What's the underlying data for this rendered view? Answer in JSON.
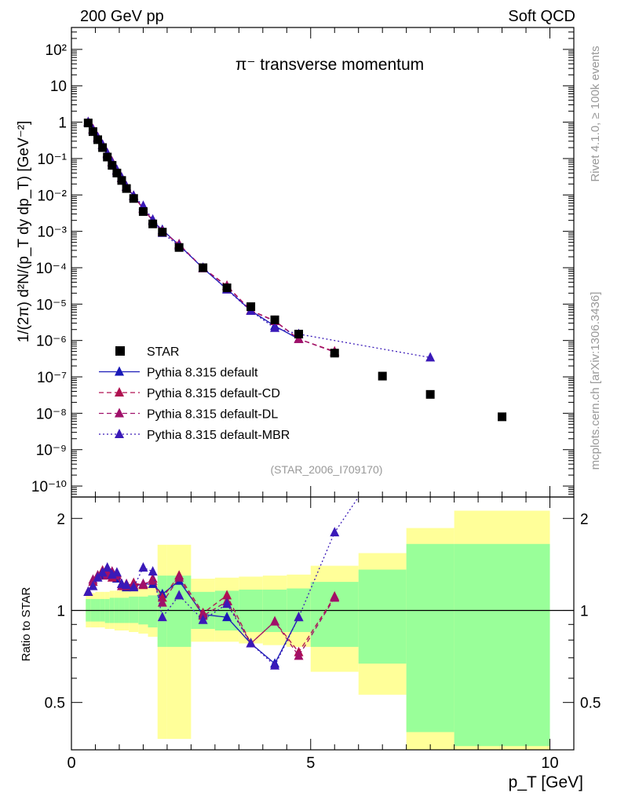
{
  "header": {
    "left": "200 GeV pp",
    "right": "Soft QCD"
  },
  "side_labels": {
    "rivet": "Rivet 4.1.0, ≥ 100k events",
    "mcplots": "mcplots.cern.ch [arXiv:1306.3436]"
  },
  "colors": {
    "star": "#000000",
    "default": "#1a1ab8",
    "cd": "#b01050",
    "dl": "#a0106a",
    "mbr": "#3a1ab8",
    "band_outer": "#ffff99",
    "band_inner": "#99ff99"
  },
  "chart_data": [
    {
      "type": "scatter",
      "title": "π⁻ transverse momentum",
      "watermark": "(STAR_2006_I709170)",
      "ylabel": "1/(2π)  d²N/(p_T dy dp_T) [GeV⁻²]",
      "yscale": "log",
      "xlim": [
        0,
        10.5
      ],
      "ylim": [
        5e-11,
        400
      ],
      "ytick_labels": [
        "10⁻¹⁰",
        "10⁻⁹",
        "10⁻⁸",
        "10⁻⁷",
        "10⁻⁶",
        "10⁻⁵",
        "10⁻⁴",
        "10⁻³",
        "10⁻²",
        "10⁻¹",
        "1",
        "10",
        "10²"
      ],
      "legend": [
        "STAR",
        "Pythia 8.315 default",
        "Pythia 8.315 default-CD",
        "Pythia 8.315 default-DL",
        "Pythia 8.315 default-MBR"
      ],
      "star": {
        "x": [
          0.35,
          0.45,
          0.55,
          0.65,
          0.75,
          0.85,
          0.95,
          1.05,
          1.15,
          1.3,
          1.5,
          1.7,
          1.9,
          2.25,
          2.75,
          3.25,
          3.75,
          4.25,
          4.75,
          5.5,
          6.5,
          7.5,
          9.0
        ],
        "y": [
          0.95,
          0.55,
          0.33,
          0.2,
          0.11,
          0.065,
          0.04,
          0.025,
          0.015,
          0.008,
          0.0035,
          0.0016,
          0.00095,
          0.00036,
          0.0001,
          2.8e-05,
          8.5e-06,
          3.7e-06,
          1.5e-06,
          4.5e-07,
          1.05e-07,
          3.3e-08,
          8e-09
        ]
      },
      "series": [
        {
          "name": "Pythia 8.315 default",
          "line": "solid",
          "x": [
            0.35,
            0.45,
            0.55,
            0.65,
            0.75,
            0.85,
            0.95,
            1.05,
            1.15,
            1.3,
            1.5,
            1.7,
            1.9,
            2.25,
            2.75,
            3.25,
            3.75,
            4.25,
            4.75
          ],
          "y": [
            1.0,
            0.62,
            0.37,
            0.23,
            0.13,
            0.078,
            0.046,
            0.029,
            0.017,
            0.0094,
            0.0043,
            0.0019,
            0.0011,
            0.00042,
            9.7e-05,
            2.6e-05,
            6.6e-06,
            2.5e-06,
            1.1e-06
          ]
        },
        {
          "name": "Pythia 8.315 default-CD",
          "line": "dashed",
          "x": [
            0.35,
            0.45,
            0.55,
            0.65,
            0.75,
            0.85,
            0.95,
            1.05,
            1.15,
            1.3,
            1.5,
            1.7,
            1.9,
            2.25,
            2.75,
            3.25,
            3.75,
            4.25,
            4.75,
            5.5
          ],
          "y": [
            1.0,
            0.64,
            0.38,
            0.24,
            0.14,
            0.08,
            0.048,
            0.03,
            0.017,
            0.0095,
            0.0042,
            0.002,
            0.001,
            0.00044,
            9.8e-05,
            3.2e-05,
            6.7e-06,
            3.5e-06,
            1.1e-06,
            5e-07
          ]
        },
        {
          "name": "Pythia 8.315 default-DL",
          "line": "dashed",
          "x": [
            0.35,
            0.45,
            0.55,
            0.65,
            0.75,
            0.85,
            0.95,
            1.05,
            1.15,
            1.3,
            1.5,
            1.7,
            1.9,
            2.25,
            2.75,
            3.25,
            3.75,
            4.25,
            4.75,
            5.5
          ],
          "y": [
            1.0,
            0.65,
            0.39,
            0.24,
            0.135,
            0.082,
            0.047,
            0.029,
            0.017,
            0.0094,
            0.0041,
            0.002,
            0.001,
            0.00044,
            9.6e-05,
            3.1e-05,
            6.6e-06,
            3.4e-06,
            1.1e-06,
            4.8e-07
          ]
        },
        {
          "name": "Pythia 8.315 default-MBR",
          "line": "dotted",
          "x": [
            0.35,
            0.45,
            0.55,
            0.65,
            0.75,
            0.85,
            0.95,
            1.05,
            1.15,
            1.3,
            1.5,
            1.7,
            1.9,
            2.25,
            2.75,
            3.25,
            3.75,
            4.25,
            4.75,
            7.5
          ],
          "y": [
            1.0,
            0.62,
            0.38,
            0.24,
            0.14,
            0.078,
            0.049,
            0.03,
            0.017,
            0.0095,
            0.005,
            0.0021,
            0.0009,
            0.0004,
            0.0001,
            2.5e-05,
            6.5e-06,
            2.2e-06,
            1.5e-06,
            3.4e-07
          ]
        }
      ]
    },
    {
      "type": "line",
      "ylabel": "Ratio to STAR",
      "xlabel": "p_T [GeV]",
      "xlim": [
        0,
        10.5
      ],
      "ylim": [
        0.35,
        2.35
      ],
      "yscale": "log",
      "xtick_labels": [
        "0",
        "5",
        "10"
      ],
      "ytick_labels": [
        "0.5",
        "1",
        "2"
      ],
      "bands": {
        "x_edges": [
          0.3,
          0.4,
          0.5,
          0.6,
          0.7,
          0.8,
          0.9,
          1.0,
          1.1,
          1.2,
          1.4,
          1.6,
          1.8,
          2.0,
          2.5,
          3.0,
          3.5,
          4.0,
          4.5,
          5.0,
          6.0,
          7.0,
          8.0,
          10.0
        ],
        "outer_lo": [
          0.88,
          0.88,
          0.88,
          0.88,
          0.87,
          0.87,
          0.86,
          0.86,
          0.86,
          0.85,
          0.84,
          0.82,
          0.38,
          0.38,
          0.79,
          0.79,
          0.78,
          0.77,
          0.76,
          0.63,
          0.53,
          0.35,
          0.35
        ],
        "outer_hi": [
          1.14,
          1.14,
          1.15,
          1.15,
          1.15,
          1.16,
          1.16,
          1.17,
          1.17,
          1.18,
          1.19,
          1.21,
          1.64,
          1.64,
          1.27,
          1.28,
          1.29,
          1.3,
          1.31,
          1.4,
          1.54,
          1.86,
          2.12
        ],
        "inner_lo": [
          0.92,
          0.92,
          0.92,
          0.92,
          0.91,
          0.91,
          0.91,
          0.91,
          0.91,
          0.91,
          0.9,
          0.88,
          0.76,
          0.76,
          0.87,
          0.86,
          0.85,
          0.85,
          0.85,
          0.76,
          0.67,
          0.4,
          0.36
        ],
        "inner_hi": [
          1.09,
          1.09,
          1.09,
          1.09,
          1.09,
          1.1,
          1.1,
          1.1,
          1.1,
          1.11,
          1.11,
          1.12,
          1.3,
          1.3,
          1.15,
          1.16,
          1.17,
          1.17,
          1.18,
          1.24,
          1.36,
          1.65,
          1.65
        ]
      },
      "series": [
        {
          "name": "Pythia 8.315 default",
          "line": "solid",
          "x": [
            0.35,
            0.45,
            0.55,
            0.65,
            0.75,
            0.85,
            0.95,
            1.05,
            1.15,
            1.3,
            1.5,
            1.7,
            1.9,
            2.25,
            2.75,
            3.25,
            3.75,
            4.25,
            4.75
          ],
          "y": [
            1.15,
            1.24,
            1.3,
            1.3,
            1.37,
            1.33,
            1.27,
            1.22,
            1.19,
            1.2,
            1.22,
            1.22,
            1.13,
            1.25,
            0.97,
            0.95,
            0.78,
            0.67,
            0.95
          ]
        },
        {
          "name": "Pythia 8.315 default-CD",
          "line": "dashed",
          "x": [
            0.35,
            0.45,
            0.55,
            0.65,
            0.75,
            0.85,
            0.95,
            1.05,
            1.15,
            1.3,
            1.5,
            1.7,
            1.9,
            2.25,
            2.75,
            3.25,
            3.75,
            4.25,
            4.75,
            5.5
          ],
          "y": [
            1.15,
            1.24,
            1.3,
            1.35,
            1.32,
            1.28,
            1.32,
            1.22,
            1.2,
            1.23,
            1.21,
            1.27,
            1.1,
            1.3,
            0.98,
            1.12,
            0.78,
            0.92,
            0.73,
            1.11
          ]
        },
        {
          "name": "Pythia 8.315 default-DL",
          "line": "dashed",
          "x": [
            0.35,
            0.45,
            0.55,
            0.65,
            0.75,
            0.85,
            0.95,
            1.05,
            1.15,
            1.3,
            1.5,
            1.7,
            1.9,
            2.25,
            2.75,
            3.25,
            3.75,
            4.25,
            4.75,
            5.5
          ],
          "y": [
            1.15,
            1.26,
            1.3,
            1.33,
            1.3,
            1.34,
            1.3,
            1.2,
            1.22,
            1.21,
            1.22,
            1.25,
            1.06,
            1.28,
            0.96,
            1.07,
            0.78,
            0.92,
            0.71,
            1.1
          ]
        },
        {
          "name": "Pythia 8.315 default-MBR",
          "line": "dotted",
          "x": [
            0.35,
            0.45,
            0.55,
            0.65,
            0.75,
            0.85,
            0.95,
            1.05,
            1.15,
            1.3,
            1.5,
            1.7,
            1.9,
            2.25,
            2.75,
            3.25,
            3.75,
            4.25,
            4.75,
            5.5,
            6.0
          ],
          "y": [
            1.15,
            1.2,
            1.28,
            1.33,
            1.38,
            1.31,
            1.33,
            1.22,
            1.21,
            1.19,
            1.38,
            1.34,
            0.95,
            1.12,
            0.93,
            1.05,
            0.78,
            0.66,
            0.95,
            1.8,
            2.35
          ]
        }
      ]
    }
  ]
}
